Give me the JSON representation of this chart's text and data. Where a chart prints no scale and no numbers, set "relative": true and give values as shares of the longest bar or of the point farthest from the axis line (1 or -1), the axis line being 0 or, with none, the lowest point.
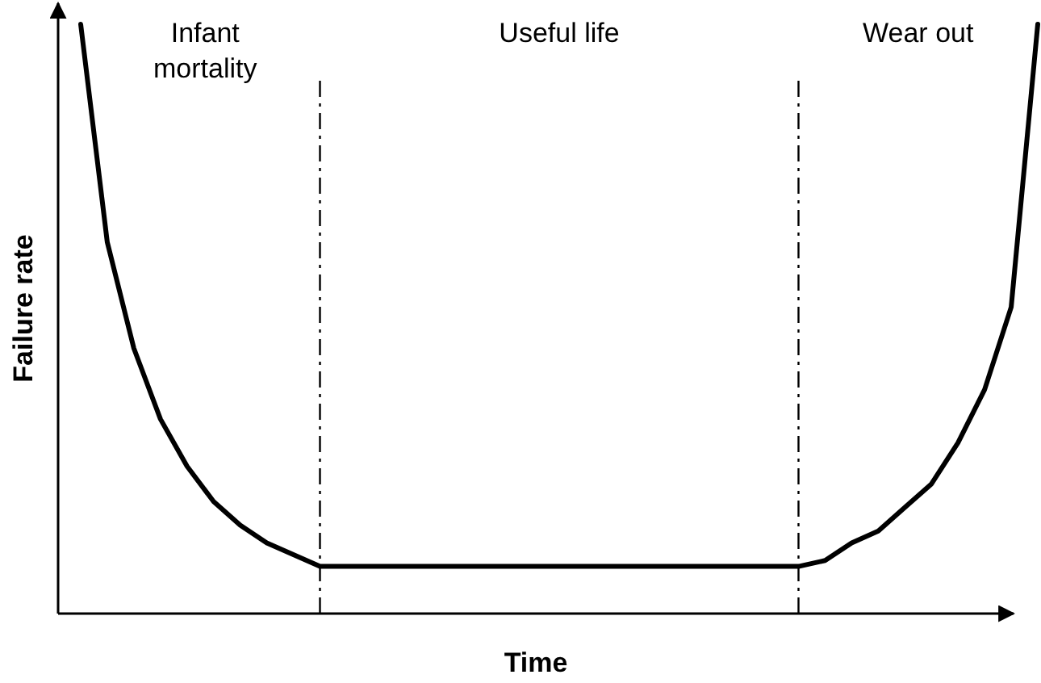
{
  "chart_data": {
    "type": "line",
    "relative": true,
    "xlabel": "Time",
    "ylabel": "Failure rate",
    "categories": [
      null,
      null,
      null,
      null,
      null,
      null,
      null,
      null,
      null,
      null,
      null,
      null,
      null,
      null,
      null,
      null,
      null,
      null,
      null,
      null,
      null,
      null,
      null,
      null,
      null,
      null,
      null,
      null,
      null,
      null,
      null,
      null,
      null,
      null,
      null,
      null,
      null
    ],
    "line_style": "solid",
    "series": [
      {
        "color": "#000000",
        "values": [
          1.0,
          0.63,
          0.45,
          0.33,
          0.25,
          0.19,
          0.15,
          0.12,
          0.1,
          0.08,
          0.08,
          0.08,
          0.08,
          0.08,
          0.08,
          0.08,
          0.08,
          0.08,
          0.08,
          0.08,
          0.08,
          0.08,
          0.08,
          0.08,
          0.08,
          0.08,
          0.08,
          0.08,
          0.09,
          0.12,
          0.14,
          0.18,
          0.22,
          0.29,
          0.38,
          0.52,
          1.0
        ]
      }
    ],
    "annotations": [
      "Infant mortality",
      "Useful life",
      "Wear out"
    ]
  }
}
